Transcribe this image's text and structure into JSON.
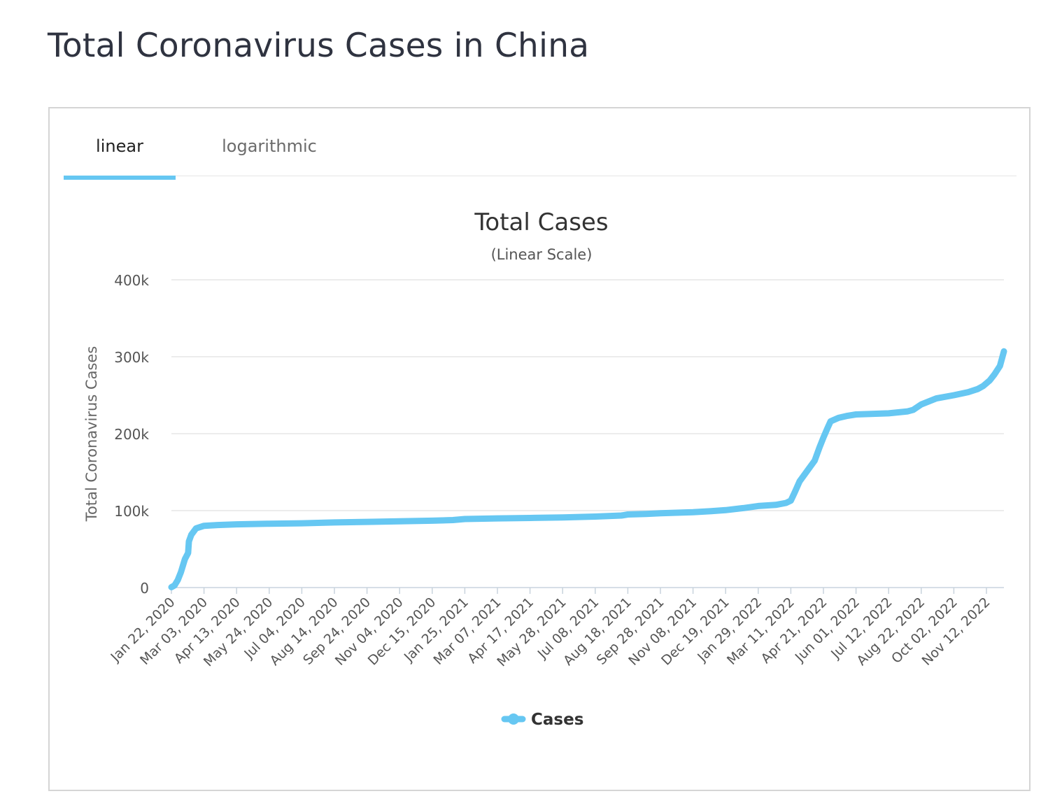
{
  "page": {
    "title": "Total Coronavirus Cases in China"
  },
  "tabs": [
    {
      "label": "linear",
      "active": true
    },
    {
      "label": "logarithmic",
      "active": false
    }
  ],
  "colors": {
    "series": "#66c7f2",
    "accent": "#66c7f2",
    "grid": "#e6e6e6",
    "text": "#333333"
  },
  "chart_data": {
    "type": "line",
    "title": "Total Cases",
    "subtitle": "(Linear Scale)",
    "xlabel": "",
    "ylabel": "Total Coronavirus Cases",
    "ylim": [
      0,
      400000
    ],
    "yticks": [
      0,
      100000,
      200000,
      300000,
      400000
    ],
    "ytick_labels": [
      "0",
      "100k",
      "200k",
      "300k",
      "400k"
    ],
    "x_tick_labels": [
      "Jan 22, 2020",
      "Mar 03, 2020",
      "Apr 13, 2020",
      "May 24, 2020",
      "Jul 04, 2020",
      "Aug 14, 2020",
      "Sep 24, 2020",
      "Nov 04, 2020",
      "Dec 15, 2020",
      "Jan 25, 2021",
      "Mar 07, 2021",
      "Apr 17, 2021",
      "May 28, 2021",
      "Jul 08, 2021",
      "Aug 18, 2021",
      "Sep 28, 2021",
      "Nov 08, 2021",
      "Dec 19, 2021",
      "Jan 29, 2022",
      "Mar 11, 2022",
      "Apr 21, 2022",
      "Jun 01, 2022",
      "Jul 12, 2022",
      "Aug 22, 2022",
      "Oct 02, 2022",
      "Nov 12, 2022"
    ],
    "grid": true,
    "legend": {
      "position": "bottom-center",
      "entries": [
        "Cases"
      ]
    },
    "series": [
      {
        "name": "Cases",
        "x": [
          "2020-01-22",
          "2020-01-26",
          "2020-01-30",
          "2020-02-03",
          "2020-02-08",
          "2020-02-12",
          "2020-02-13",
          "2020-02-16",
          "2020-02-22",
          "2020-03-03",
          "2020-03-20",
          "2020-04-13",
          "2020-05-24",
          "2020-07-04",
          "2020-08-14",
          "2020-09-24",
          "2020-11-04",
          "2020-12-15",
          "2021-01-10",
          "2021-01-25",
          "2021-03-07",
          "2021-04-17",
          "2021-05-28",
          "2021-07-08",
          "2021-08-10",
          "2021-08-18",
          "2021-09-10",
          "2021-09-28",
          "2021-11-08",
          "2021-12-01",
          "2021-12-19",
          "2022-01-10",
          "2022-01-29",
          "2022-02-20",
          "2022-03-05",
          "2022-03-11",
          "2022-03-16",
          "2022-03-22",
          "2022-03-29",
          "2022-04-10",
          "2022-04-16",
          "2022-04-21",
          "2022-04-26",
          "2022-04-30",
          "2022-05-10",
          "2022-05-20",
          "2022-06-01",
          "2022-07-12",
          "2022-08-05",
          "2022-08-12",
          "2022-08-22",
          "2022-09-10",
          "2022-10-02",
          "2022-10-20",
          "2022-11-01",
          "2022-11-08",
          "2022-11-16",
          "2022-11-22",
          "2022-11-29",
          "2022-12-04"
        ],
        "values": [
          548,
          2800,
          9700,
          20000,
          37000,
          45000,
          60000,
          68500,
          76900,
          80300,
          81300,
          82200,
          83000,
          83500,
          84600,
          85400,
          86100,
          86900,
          87700,
          89100,
          89900,
          90500,
          91200,
          92300,
          93600,
          95000,
          95700,
          96600,
          97900,
          99300,
          100600,
          103300,
          106000,
          107500,
          110000,
          113000,
          124000,
          138000,
          148000,
          165000,
          182000,
          195000,
          207000,
          216000,
          220500,
          223000,
          225000,
          226500,
          229000,
          231000,
          238000,
          245800,
          250000,
          254000,
          258000,
          262000,
          269000,
          277000,
          288000,
          307000
        ]
      }
    ]
  }
}
